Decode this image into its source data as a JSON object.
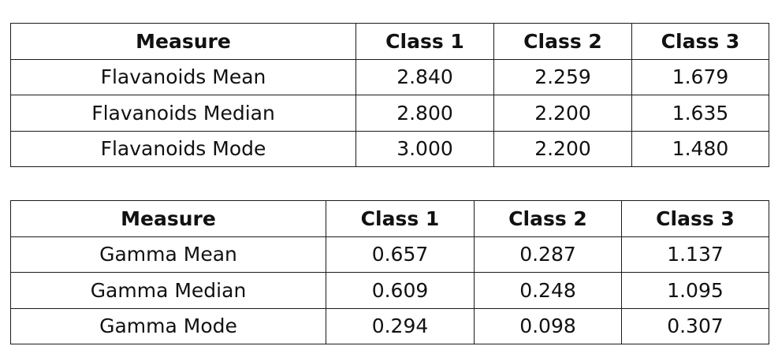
{
  "tables": [
    {
      "headers": [
        "Measure",
        "Class 1",
        "Class 2",
        "Class 3"
      ],
      "rows": [
        [
          "Flavanoids Mean",
          "2.840",
          "2.259",
          "1.679"
        ],
        [
          "Flavanoids Median",
          "2.800",
          "2.200",
          "1.635"
        ],
        [
          "Flavanoids Mode",
          "3.000",
          "2.200",
          "1.480"
        ]
      ]
    },
    {
      "headers": [
        "Measure",
        "Class 1",
        "Class 2",
        "Class 3"
      ],
      "rows": [
        [
          "Gamma Mean",
          "0.657",
          "0.287",
          "1.137"
        ],
        [
          "Gamma Median",
          "0.609",
          "0.248",
          "1.095"
        ],
        [
          "Gamma Mode",
          "0.294",
          "0.098",
          "0.307"
        ]
      ]
    }
  ]
}
